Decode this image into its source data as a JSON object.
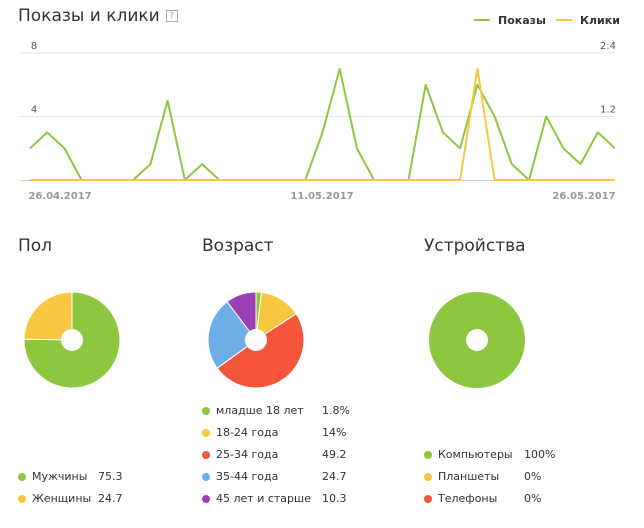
{
  "header": {
    "title": "Показы и клики",
    "help_icon": "?"
  },
  "colors": {
    "impressions": "#8dc63f",
    "clicks": "#f7c83f",
    "grid": "#e6e6e6",
    "baseline": "#cfcfcf",
    "axis_text": "#999999"
  },
  "chart_data": [
    {
      "type": "line",
      "title": "Показы и клики",
      "x_ticks": [
        "26.04.2017",
        "11.05.2017",
        "26.05.2017"
      ],
      "y_left_ticks": [
        "8",
        "4"
      ],
      "y_right_ticks": [
        "2.4",
        "1.2"
      ],
      "ylim_left": [
        0,
        8
      ],
      "ylim_right": [
        0,
        2.4
      ],
      "series": [
        {
          "name": "Показы",
          "axis": "left",
          "color": "#8dc63f",
          "values": [
            2,
            3,
            2,
            0,
            0,
            0,
            0,
            1,
            5,
            0,
            1,
            0,
            0,
            0,
            0,
            0,
            0,
            3,
            7,
            2,
            0,
            0,
            0,
            6,
            3,
            2,
            6,
            4,
            1,
            0,
            4,
            2,
            1,
            3,
            2
          ]
        },
        {
          "name": "Клики",
          "axis": "right",
          "color": "#f7c83f",
          "values": [
            0,
            0,
            0,
            0,
            0,
            0,
            0,
            0,
            0,
            0,
            0,
            0,
            0,
            0,
            0,
            0,
            0,
            0,
            0,
            0,
            0,
            0,
            0,
            0,
            0,
            0,
            2.1,
            0,
            0,
            0,
            0,
            0,
            0,
            0,
            0
          ]
        }
      ],
      "legend": "top-right",
      "grid": true
    },
    {
      "type": "pie",
      "title": "Пол",
      "slices": [
        {
          "label": "Мужчины",
          "value": "75.3",
          "color": "#8dc63f"
        },
        {
          "label": "Женщины",
          "value": "24.7",
          "color": "#f7c83f"
        }
      ]
    },
    {
      "type": "pie",
      "title": "Возраст",
      "slices": [
        {
          "label": "младше 18 лет",
          "value": "1.8%",
          "color": "#8dc63f"
        },
        {
          "label": "18-24 года",
          "value": "14%",
          "color": "#f7c83f"
        },
        {
          "label": "25-34 года",
          "value": "49.2",
          "color": "#f4553b"
        },
        {
          "label": "35-44 года",
          "value": "24.7",
          "color": "#6daee6"
        },
        {
          "label": "45 лет и старше",
          "value": "10.3",
          "color": "#9b3fb5"
        }
      ]
    },
    {
      "type": "pie",
      "title": "Устройства",
      "slices": [
        {
          "label": "Компьютеры",
          "value": "100%",
          "color": "#8dc63f"
        },
        {
          "label": "Планшеты",
          "value": "0%",
          "color": "#f7c83f"
        },
        {
          "label": "Телефоны",
          "value": "0%",
          "color": "#f4553b"
        }
      ]
    }
  ]
}
